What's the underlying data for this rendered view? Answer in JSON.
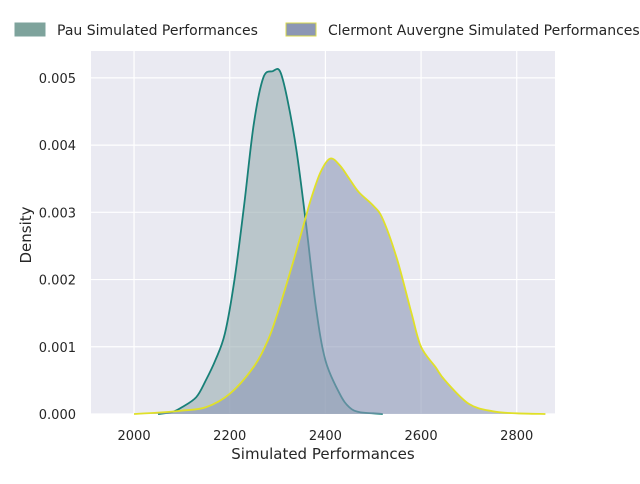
{
  "legend": {
    "items": [
      {
        "label": "Pau Simulated Performances",
        "swatch_fill": "#7ea39c",
        "swatch_edge": "#7ea39c"
      },
      {
        "label": "Clermont Auvergne Simulated Performances",
        "swatch_fill": "#8c97b4",
        "swatch_edge": "#d8d84c"
      }
    ]
  },
  "chart_data": {
    "type": "area",
    "title": "",
    "xlabel": "Simulated Performances",
    "ylabel": "Density",
    "xlim": [
      1910,
      2880
    ],
    "ylim": [
      0,
      0.0054
    ],
    "xticks": [
      2000,
      2200,
      2400,
      2600,
      2800
    ],
    "yticks": [
      0.0,
      0.001,
      0.002,
      0.003,
      0.004,
      0.005
    ],
    "xtick_labels": [
      "2000",
      "2200",
      "2400",
      "2600",
      "2800"
    ],
    "ytick_labels": [
      "0.000",
      "0.001",
      "0.002",
      "0.003",
      "0.004",
      "0.005"
    ],
    "grid": true,
    "legend_position": "top, outside plot",
    "background": "#eaeaf2",
    "series": [
      {
        "name": "Pau Simulated Performances",
        "line_color": "#188078",
        "fill_color": "#9aaeb1",
        "points": [
          [
            2050,
            0.0
          ],
          [
            2080,
            3e-05
          ],
          [
            2100,
            0.0001
          ],
          [
            2130,
            0.00025
          ],
          [
            2150,
            0.0005
          ],
          [
            2170,
            0.0008
          ],
          [
            2190,
            0.0012
          ],
          [
            2210,
            0.002
          ],
          [
            2230,
            0.0031
          ],
          [
            2250,
            0.0043
          ],
          [
            2270,
            0.005
          ],
          [
            2290,
            0.0051
          ],
          [
            2305,
            0.0051
          ],
          [
            2320,
            0.0047
          ],
          [
            2340,
            0.0039
          ],
          [
            2360,
            0.0028
          ],
          [
            2380,
            0.0016
          ],
          [
            2400,
            0.0008
          ],
          [
            2430,
            0.0003
          ],
          [
            2450,
            0.0001
          ],
          [
            2470,
            3e-05
          ],
          [
            2500,
            1e-05
          ],
          [
            2520,
            0.0
          ]
        ]
      },
      {
        "name": "Clermont Auvergne Simulated Performances",
        "line_color": "#e0e028",
        "fill_color": "#8e9ab8",
        "points": [
          [
            2000,
            0.0
          ],
          [
            2050,
            2e-05
          ],
          [
            2100,
            5e-05
          ],
          [
            2150,
            0.0001
          ],
          [
            2200,
            0.0003
          ],
          [
            2250,
            0.0007
          ],
          [
            2280,
            0.0011
          ],
          [
            2300,
            0.0015
          ],
          [
            2330,
            0.0022
          ],
          [
            2350,
            0.0027
          ],
          [
            2370,
            0.0032
          ],
          [
            2390,
            0.0036
          ],
          [
            2410,
            0.0038
          ],
          [
            2430,
            0.0037
          ],
          [
            2450,
            0.0035
          ],
          [
            2470,
            0.0033
          ],
          [
            2500,
            0.0031
          ],
          [
            2520,
            0.0029
          ],
          [
            2550,
            0.0023
          ],
          [
            2580,
            0.0015
          ],
          [
            2600,
            0.001
          ],
          [
            2630,
            0.0007
          ],
          [
            2650,
            0.0005
          ],
          [
            2700,
            0.00015
          ],
          [
            2750,
            4e-05
          ],
          [
            2800,
            1e-05
          ],
          [
            2860,
            0.0
          ]
        ]
      }
    ]
  }
}
